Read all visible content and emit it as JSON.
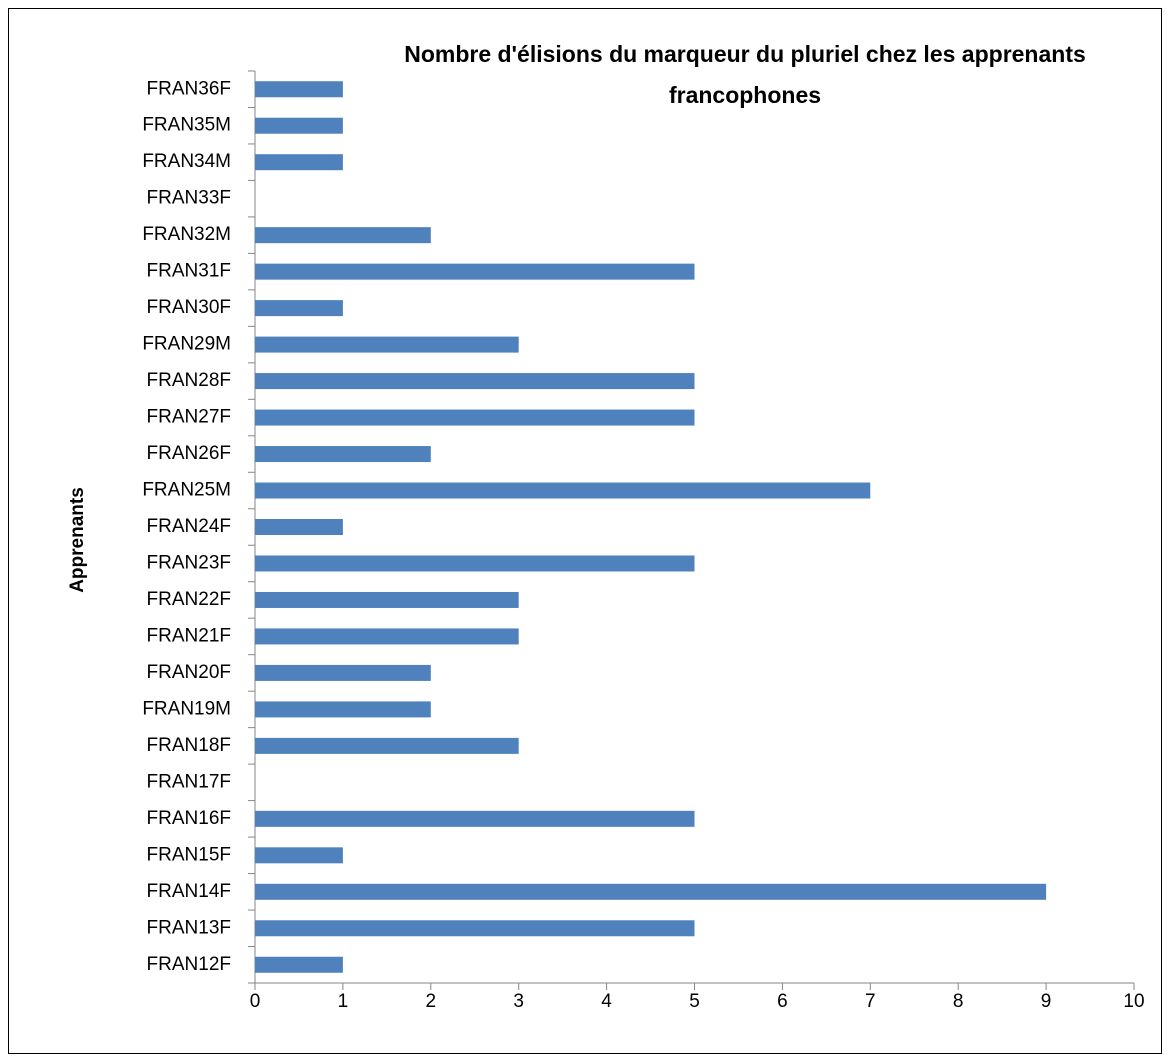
{
  "chart_data": {
    "type": "bar",
    "orientation": "horizontal",
    "title": "Nombre d'élisions du marqueur du pluriel chez les apprenants francophones",
    "ylabel": "Apprenants",
    "categories": [
      "FRAN12F",
      "FRAN13F",
      "FRAN14F",
      "FRAN15F",
      "FRAN16F",
      "FRAN17F",
      "FRAN18F",
      "FRAN19M",
      "FRAN20F",
      "FRAN21F",
      "FRAN22F",
      "FRAN23F",
      "FRAN24F",
      "FRAN25M",
      "FRAN26F",
      "FRAN27F",
      "FRAN28F",
      "FRAN29M",
      "FRAN30F",
      "FRAN31F",
      "FRAN32M",
      "FRAN33F",
      "FRAN34M",
      "FRAN35M",
      "FRAN36F"
    ],
    "values": [
      1,
      5,
      9,
      1,
      5,
      0,
      3,
      2,
      2,
      3,
      3,
      5,
      1,
      7,
      2,
      5,
      5,
      3,
      1,
      5,
      2,
      0,
      1,
      1,
      1
    ],
    "color": "#4f81bd",
    "xlim": [
      0,
      10
    ],
    "xticks": [
      0,
      1,
      2,
      3,
      4,
      5,
      6,
      7,
      8,
      9,
      10
    ],
    "grid": false
  }
}
